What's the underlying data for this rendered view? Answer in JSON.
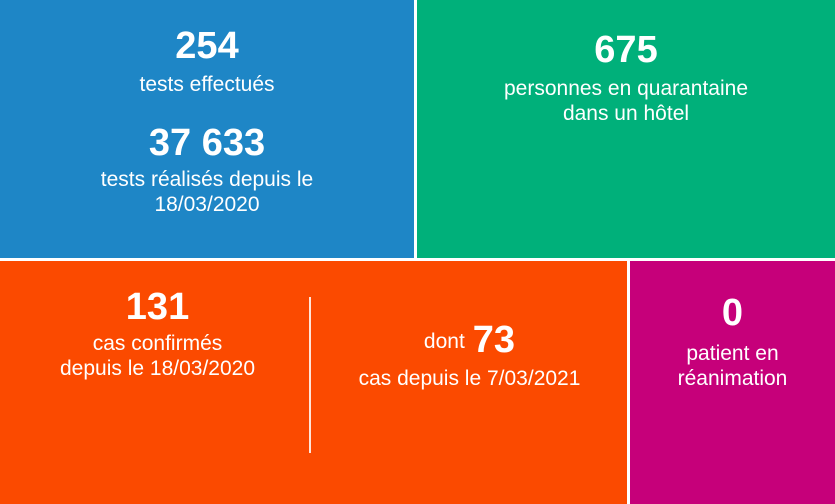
{
  "tests": {
    "daily_value": "254",
    "daily_label": "tests effectués",
    "total_value": "37 633",
    "total_label_line1": "tests réalisés depuis le",
    "total_label_line2": "18/03/2020"
  },
  "quarantine": {
    "value": "675",
    "label_line1": "personnes en quarantaine",
    "label_line2": "dans un hôtel"
  },
  "cases": {
    "total_value": "131",
    "total_label_line1": "cas confirmés",
    "total_label_line2": "depuis le 18/03/2020",
    "recent_prefix": "dont",
    "recent_value": "73",
    "recent_label": "cas depuis le 7/03/2021"
  },
  "icu": {
    "value": "0",
    "label_line1": "patient en",
    "label_line2": "réanimation"
  },
  "colors": {
    "blue": "#1e86c6",
    "green": "#00b07a",
    "orange": "#fb4a00",
    "magenta": "#c6007a"
  }
}
